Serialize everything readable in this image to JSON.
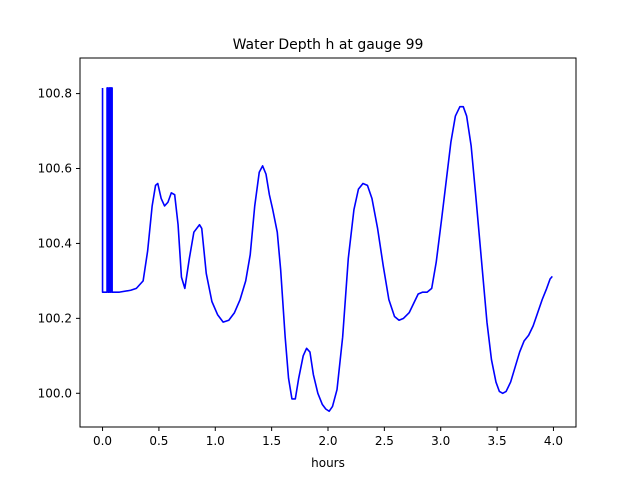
{
  "chart_data": {
    "type": "line",
    "title": "Water Depth h at gauge 99",
    "xlabel": "hours",
    "ylabel": "",
    "xlim": [
      -0.2,
      4.2
    ],
    "ylim": [
      99.91,
      100.895
    ],
    "x_ticks": [
      0.0,
      0.5,
      1.0,
      1.5,
      2.0,
      2.5,
      3.0,
      3.5,
      4.0
    ],
    "x_tick_labels": [
      "0.0",
      "0.5",
      "1.0",
      "1.5",
      "2.0",
      "2.5",
      "3.0",
      "3.5",
      "4.0"
    ],
    "y_ticks": [
      100.0,
      100.2,
      100.4,
      100.6,
      100.8
    ],
    "y_tick_labels": [
      "100.0",
      "100.2",
      "100.4",
      "100.6",
      "100.8"
    ],
    "grid": false,
    "legend": "none",
    "series": [
      {
        "color": "#0000ff",
        "points": [
          [
            0.0,
            100.815
          ],
          [
            0.0,
            100.27
          ],
          [
            0.04,
            100.27
          ],
          [
            0.04,
            100.815
          ],
          [
            0.05,
            100.815
          ],
          [
            0.05,
            100.27
          ],
          [
            0.06,
            100.27
          ],
          [
            0.06,
            100.815
          ],
          [
            0.07,
            100.815
          ],
          [
            0.07,
            100.27
          ],
          [
            0.075,
            100.27
          ],
          [
            0.075,
            100.815
          ],
          [
            0.085,
            100.815
          ],
          [
            0.085,
            100.27
          ],
          [
            0.09,
            100.27
          ],
          [
            0.15,
            100.27
          ],
          [
            0.25,
            100.275
          ],
          [
            0.3,
            100.28
          ],
          [
            0.36,
            100.3
          ],
          [
            0.4,
            100.38
          ],
          [
            0.44,
            100.5
          ],
          [
            0.47,
            100.555
          ],
          [
            0.49,
            100.56
          ],
          [
            0.52,
            100.52
          ],
          [
            0.55,
            100.5
          ],
          [
            0.58,
            100.51
          ],
          [
            0.61,
            100.535
          ],
          [
            0.64,
            100.53
          ],
          [
            0.67,
            100.45
          ],
          [
            0.7,
            100.31
          ],
          [
            0.73,
            100.28
          ],
          [
            0.77,
            100.36
          ],
          [
            0.81,
            100.43
          ],
          [
            0.86,
            100.45
          ],
          [
            0.88,
            100.44
          ],
          [
            0.92,
            100.32
          ],
          [
            0.97,
            100.245
          ],
          [
            1.02,
            100.21
          ],
          [
            1.07,
            100.19
          ],
          [
            1.12,
            100.195
          ],
          [
            1.17,
            100.215
          ],
          [
            1.22,
            100.25
          ],
          [
            1.27,
            100.3
          ],
          [
            1.31,
            100.37
          ],
          [
            1.35,
            100.5
          ],
          [
            1.39,
            100.59
          ],
          [
            1.42,
            100.607
          ],
          [
            1.45,
            100.585
          ],
          [
            1.48,
            100.53
          ],
          [
            1.51,
            100.49
          ],
          [
            1.55,
            100.43
          ],
          [
            1.58,
            100.33
          ],
          [
            1.62,
            100.15
          ],
          [
            1.65,
            100.04
          ],
          [
            1.68,
            99.985
          ],
          [
            1.71,
            99.985
          ],
          [
            1.74,
            100.04
          ],
          [
            1.78,
            100.1
          ],
          [
            1.81,
            100.12
          ],
          [
            1.84,
            100.11
          ],
          [
            1.87,
            100.05
          ],
          [
            1.91,
            100.0
          ],
          [
            1.95,
            99.97
          ],
          [
            1.98,
            99.958
          ],
          [
            2.01,
            99.952
          ],
          [
            2.04,
            99.965
          ],
          [
            2.08,
            100.01
          ],
          [
            2.13,
            100.15
          ],
          [
            2.18,
            100.36
          ],
          [
            2.23,
            100.49
          ],
          [
            2.27,
            100.545
          ],
          [
            2.31,
            100.56
          ],
          [
            2.35,
            100.555
          ],
          [
            2.39,
            100.52
          ],
          [
            2.44,
            100.44
          ],
          [
            2.49,
            100.34
          ],
          [
            2.54,
            100.25
          ],
          [
            2.59,
            100.205
          ],
          [
            2.63,
            100.195
          ],
          [
            2.67,
            100.2
          ],
          [
            2.72,
            100.215
          ],
          [
            2.76,
            100.24
          ],
          [
            2.8,
            100.265
          ],
          [
            2.84,
            100.27
          ],
          [
            2.88,
            100.27
          ],
          [
            2.92,
            100.28
          ],
          [
            2.96,
            100.35
          ],
          [
            3.01,
            100.47
          ],
          [
            3.05,
            100.57
          ],
          [
            3.09,
            100.67
          ],
          [
            3.13,
            100.74
          ],
          [
            3.17,
            100.765
          ],
          [
            3.2,
            100.765
          ],
          [
            3.23,
            100.74
          ],
          [
            3.27,
            100.66
          ],
          [
            3.31,
            100.53
          ],
          [
            3.36,
            100.36
          ],
          [
            3.41,
            100.19
          ],
          [
            3.45,
            100.09
          ],
          [
            3.49,
            100.03
          ],
          [
            3.52,
            100.005
          ],
          [
            3.55,
            100.0
          ],
          [
            3.58,
            100.005
          ],
          [
            3.62,
            100.03
          ],
          [
            3.66,
            100.07
          ],
          [
            3.7,
            100.11
          ],
          [
            3.74,
            100.14
          ],
          [
            3.78,
            100.155
          ],
          [
            3.82,
            100.18
          ],
          [
            3.86,
            100.215
          ],
          [
            3.9,
            100.25
          ],
          [
            3.94,
            100.28
          ],
          [
            3.97,
            100.305
          ],
          [
            3.99,
            100.312
          ]
        ]
      }
    ]
  }
}
